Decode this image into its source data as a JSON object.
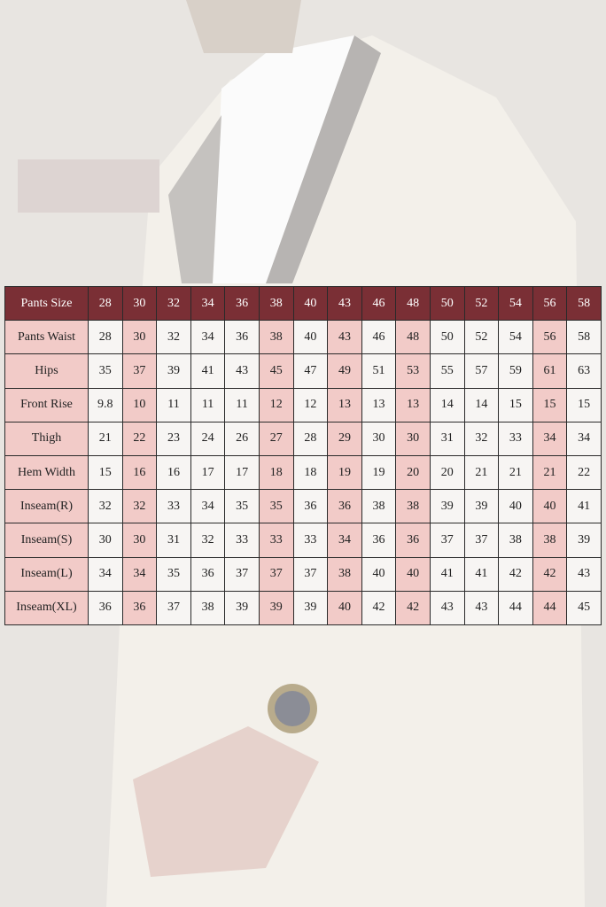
{
  "table": {
    "header": [
      "Pants Size",
      "28",
      "30",
      "32",
      "34",
      "36",
      "38",
      "40",
      "43",
      "46",
      "48",
      "50",
      "52",
      "54",
      "56",
      "58"
    ],
    "rows": [
      [
        "Pants Waist",
        "28",
        "30",
        "32",
        "34",
        "36",
        "38",
        "40",
        "43",
        "46",
        "48",
        "50",
        "52",
        "54",
        "56",
        "58"
      ],
      [
        "Hips",
        "35",
        "37",
        "39",
        "41",
        "43",
        "45",
        "47",
        "49",
        "51",
        "53",
        "55",
        "57",
        "59",
        "61",
        "63"
      ],
      [
        "Front Rise",
        "9.8",
        "10",
        "11",
        "11",
        "11",
        "12",
        "12",
        "13",
        "13",
        "13",
        "14",
        "14",
        "15",
        "15",
        "15"
      ],
      [
        "Thigh",
        "21",
        "22",
        "23",
        "24",
        "26",
        "27",
        "28",
        "29",
        "30",
        "30",
        "31",
        "32",
        "33",
        "34",
        "34"
      ],
      [
        "Hem Width",
        "15",
        "16",
        "16",
        "17",
        "17",
        "18",
        "18",
        "19",
        "19",
        "20",
        "20",
        "21",
        "21",
        "21",
        "22"
      ],
      [
        "Inseam(R)",
        "32",
        "32",
        "33",
        "34",
        "35",
        "35",
        "36",
        "36",
        "38",
        "38",
        "39",
        "39",
        "40",
        "40",
        "41"
      ],
      [
        "Inseam(S)",
        "30",
        "30",
        "31",
        "32",
        "33",
        "33",
        "33",
        "34",
        "36",
        "36",
        "37",
        "37",
        "38",
        "38",
        "39"
      ],
      [
        "Inseam(L)",
        "34",
        "34",
        "35",
        "36",
        "37",
        "37",
        "37",
        "38",
        "40",
        "40",
        "41",
        "41",
        "42",
        "42",
        "43"
      ],
      [
        "Inseam(XL)",
        "36",
        "36",
        "37",
        "38",
        "39",
        "39",
        "39",
        "40",
        "42",
        "42",
        "43",
        "43",
        "44",
        "44",
        "45"
      ]
    ]
  }
}
